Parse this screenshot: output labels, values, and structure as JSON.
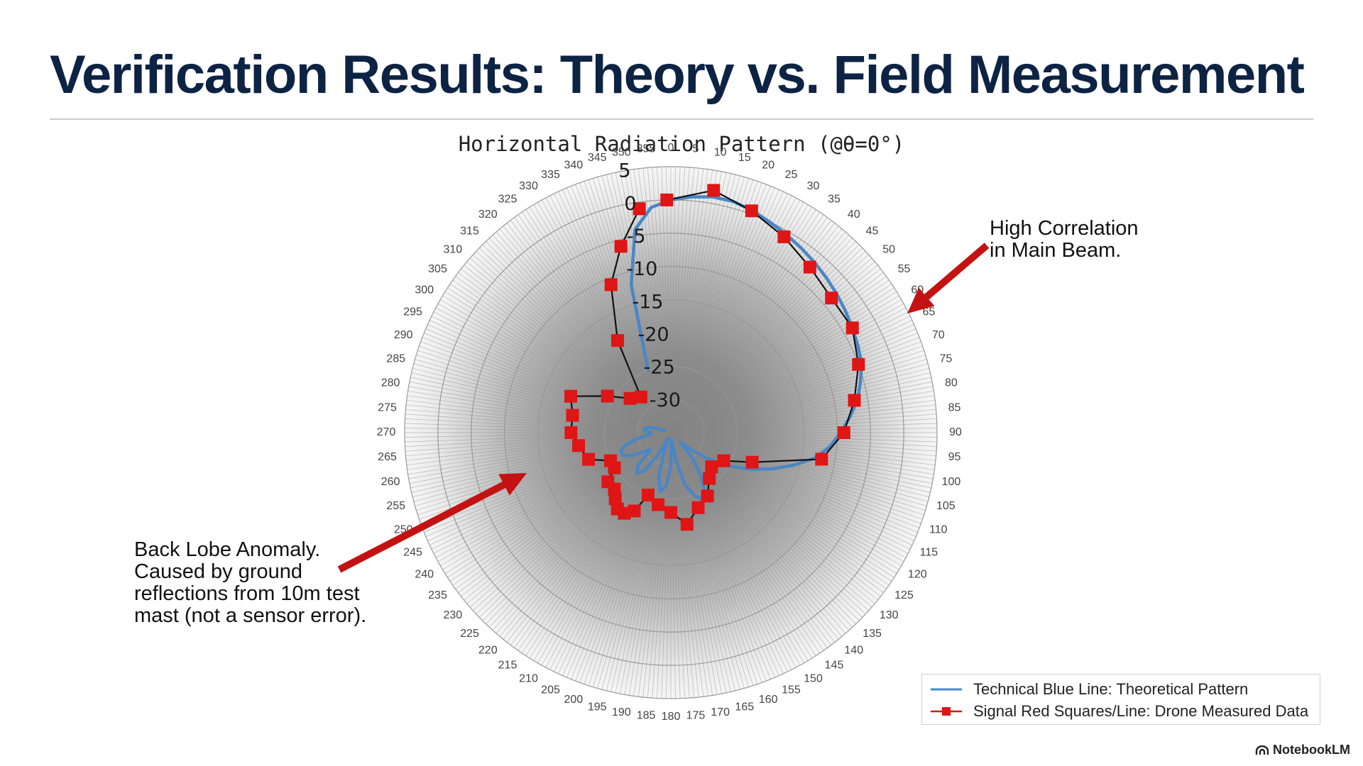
{
  "slide": {
    "title": "Verification Results: Theory vs. Field Measurement",
    "brand": "NotebookLM",
    "brand_icon": "notebooklm-logo-icon"
  },
  "annotations": {
    "main_beam": [
      "High Correlation",
      "in Main Beam."
    ],
    "back_lobe": [
      "Back Lobe Anomaly.",
      "Caused by ground",
      "reflections from 10m test",
      "mast (not a sensor error)."
    ]
  },
  "legend": {
    "theory": "Technical Blue Line: Theoretical Pattern",
    "measured": "Signal Red Squares/Line: Drone Measured Data"
  },
  "colors": {
    "title": "#0d2344",
    "theory": "#4a86c5",
    "measured_marker": "#e01515",
    "measured_line": "#111111",
    "arrow": "#c41212"
  },
  "chart_data": {
    "type": "polar",
    "title": "Horizontal Radiation Pattern (@θ=0°)",
    "angle_unit": "deg",
    "direction": "clockwise",
    "zero_location": "top",
    "angle_ticks": [
      0,
      5,
      10,
      15,
      20,
      25,
      30,
      35,
      40,
      45,
      50,
      55,
      60,
      65,
      70,
      75,
      80,
      85,
      90,
      95,
      100,
      105,
      110,
      115,
      120,
      125,
      130,
      135,
      140,
      145,
      150,
      155,
      160,
      165,
      170,
      175,
      180,
      185,
      190,
      195,
      200,
      205,
      210,
      215,
      220,
      225,
      230,
      235,
      240,
      245,
      250,
      255,
      260,
      265,
      270,
      275,
      280,
      285,
      290,
      295,
      300,
      305,
      310,
      315,
      320,
      325,
      330,
      335,
      340,
      345,
      350,
      355
    ],
    "radial_ticks": [
      "5",
      "0",
      "-5",
      "-10",
      "-15",
      "-20",
      "-25",
      "-30"
    ],
    "rlim": [
      -35,
      5
    ],
    "radial_label_angle": -10,
    "grid": true,
    "legend_position": "bottom-right",
    "series": [
      {
        "name": "Technical Blue Line: Theoretical Pattern",
        "style": "line",
        "points": [
          [
            -20,
            -25
          ],
          [
            -15,
            -12
          ],
          [
            -10,
            -4
          ],
          [
            -5,
            -1
          ],
          [
            0,
            0
          ],
          [
            5,
            0.6
          ],
          [
            10,
            1
          ],
          [
            15,
            1
          ],
          [
            20,
            0.6
          ],
          [
            25,
            0
          ],
          [
            30,
            -0.5
          ],
          [
            35,
            -1
          ],
          [
            40,
            -1.5
          ],
          [
            45,
            -2
          ],
          [
            50,
            -2.5
          ],
          [
            55,
            -3
          ],
          [
            60,
            -3.5
          ],
          [
            65,
            -4
          ],
          [
            70,
            -4.5
          ],
          [
            75,
            -5.5
          ],
          [
            80,
            -6.5
          ],
          [
            85,
            -8
          ],
          [
            90,
            -9.5
          ],
          [
            95,
            -11
          ],
          [
            100,
            -13
          ],
          [
            105,
            -16
          ],
          [
            110,
            -19
          ],
          [
            115,
            -22
          ],
          [
            120,
            -25
          ],
          [
            125,
            -28
          ],
          [
            130,
            -31
          ],
          [
            135,
            -33
          ],
          [
            140,
            -30
          ],
          [
            145,
            -27
          ],
          [
            150,
            -25
          ],
          [
            155,
            -24
          ],
          [
            160,
            -25
          ],
          [
            165,
            -27
          ],
          [
            170,
            -31
          ],
          [
            175,
            -34
          ],
          [
            180,
            -30
          ],
          [
            185,
            -27
          ],
          [
            190,
            -26
          ],
          [
            195,
            -28
          ],
          [
            200,
            -32
          ],
          [
            205,
            -34
          ],
          [
            210,
            -31
          ],
          [
            215,
            -28
          ],
          [
            220,
            -27
          ],
          [
            225,
            -28
          ],
          [
            230,
            -31
          ],
          [
            235,
            -30
          ],
          [
            240,
            -28
          ],
          [
            245,
            -27
          ],
          [
            250,
            -27
          ],
          [
            255,
            -28
          ],
          [
            260,
            -30
          ],
          [
            265,
            -32
          ],
          [
            270,
            -32
          ],
          [
            275,
            -31
          ],
          [
            280,
            -31
          ],
          [
            285,
            -32
          ],
          [
            290,
            -34
          ]
        ]
      },
      {
        "name": "Signal Red Squares/Line: Drone Measured Data",
        "style": "line+square-markers",
        "points": [
          [
            -1,
            0
          ],
          [
            10,
            2
          ],
          [
            20,
            0.5
          ],
          [
            30,
            -1
          ],
          [
            40,
            -2.5
          ],
          [
            50,
            -3.5
          ],
          [
            60,
            -3.5
          ],
          [
            70,
            -5
          ],
          [
            80,
            -7
          ],
          [
            90,
            -9
          ],
          [
            100,
            -12
          ],
          [
            110,
            -22
          ],
          [
            118,
            -26
          ],
          [
            130,
            -27
          ],
          [
            140,
            -26
          ],
          [
            150,
            -24
          ],
          [
            160,
            -23
          ],
          [
            170,
            -21
          ],
          [
            180,
            -23
          ],
          [
            190,
            -24
          ],
          [
            200,
            -25
          ],
          [
            205,
            -22
          ],
          [
            210,
            -21
          ],
          [
            215,
            -21
          ],
          [
            220,
            -22
          ],
          [
            225,
            -23
          ],
          [
            232,
            -23
          ],
          [
            238,
            -25
          ],
          [
            245,
            -25
          ],
          [
            252,
            -22
          ],
          [
            262,
            -21
          ],
          [
            270,
            -20
          ],
          [
            280,
            -20
          ],
          [
            290,
            -19
          ],
          [
            300,
            -24
          ],
          [
            310,
            -27
          ],
          [
            320,
            -28
          ],
          [
            330,
            -19
          ],
          [
            338,
            -11
          ],
          [
            345,
            -6
          ],
          [
            352,
            -1
          ]
        ]
      }
    ]
  }
}
